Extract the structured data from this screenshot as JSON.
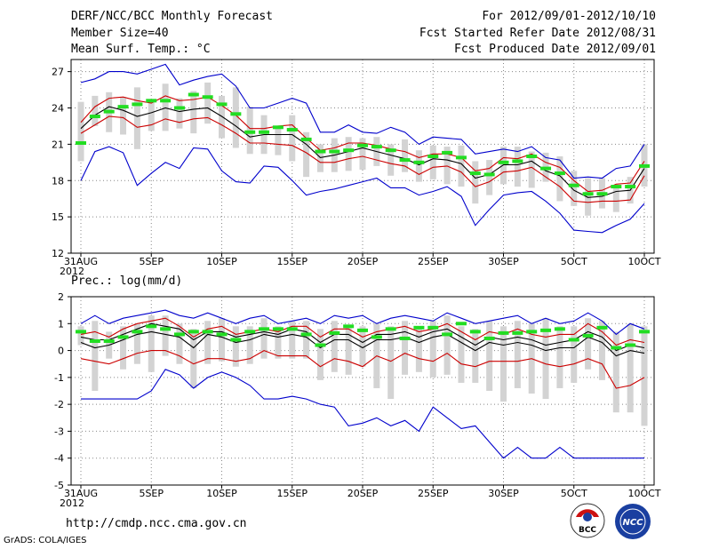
{
  "header": {
    "title": "DERF/NCC/BCC Monthly Forecast",
    "member_size": "Member Size=40",
    "variable": "Mean Surf. Temp.: °C",
    "period": "For 2012/09/01-2012/10/10",
    "fcst_started": "Fcst Started Refer Date 2012/08/31",
    "fcst_produced": "Fcst Produced Date 2012/09/01"
  },
  "footer": {
    "url": "http://cmdp.ncc.cma.gov.cn",
    "grads": "GrADS: COLA/IGES",
    "logo_left_text": "BCC",
    "logo_right_text": "NCC"
  },
  "colors": {
    "upper_lower_bound": "#0000cc",
    "spread": "#cc0000",
    "ensemble_mean": "#000000",
    "box": "#d3d3d3",
    "observed": "#22dd22",
    "grid": "#888888"
  },
  "chart_data": [
    {
      "type": "line",
      "title": "Mean Surf. Temp.: °C",
      "x_tick_labels": [
        "31AUG",
        "5SEP",
        "10SEP",
        "15SEP",
        "20SEP",
        "25SEP",
        "30SEP",
        "5OCT",
        "10OCT"
      ],
      "x_tick_year": "2012",
      "x_range": [
        0,
        40
      ],
      "ylim": [
        12,
        28
      ],
      "y_ticks": [
        12,
        15,
        18,
        21,
        24,
        27
      ],
      "grid": true,
      "series": [
        {
          "name": "max",
          "values": [
            26.1,
            26.4,
            27.0,
            27.0,
            26.8,
            27.2,
            27.6,
            25.9,
            26.3,
            26.6,
            26.8,
            25.8,
            24.0,
            24.0,
            24.4,
            24.8,
            24.4,
            22.0,
            22.0,
            22.6,
            22.0,
            21.9,
            22.4,
            22.0,
            21.0,
            21.6,
            21.5,
            21.4,
            20.2,
            20.4,
            20.6,
            20.4,
            20.8,
            19.9,
            19.7,
            18.2,
            18.3,
            18.2,
            19.0,
            19.2,
            21.0
          ]
        },
        {
          "name": "upper",
          "values": [
            22.8,
            24.1,
            24.8,
            24.9,
            24.6,
            24.4,
            25.0,
            24.6,
            24.7,
            24.9,
            24.2,
            23.4,
            22.3,
            22.3,
            22.5,
            22.6,
            21.5,
            20.5,
            20.7,
            21.1,
            21.1,
            20.9,
            20.6,
            20.4,
            19.9,
            20.2,
            20.2,
            19.9,
            18.8,
            19.0,
            19.9,
            19.8,
            20.2,
            19.5,
            19.1,
            18.0,
            17.1,
            17.2,
            17.7,
            17.8,
            19.6
          ]
        },
        {
          "name": "mean",
          "values": [
            22.3,
            23.4,
            24.1,
            23.8,
            23.3,
            23.6,
            24.0,
            23.7,
            23.9,
            24.0,
            23.3,
            22.5,
            21.6,
            21.8,
            21.8,
            21.8,
            21.0,
            19.9,
            20.1,
            20.4,
            20.7,
            20.4,
            20.1,
            19.8,
            19.3,
            19.8,
            19.7,
            19.4,
            18.2,
            18.5,
            19.3,
            19.3,
            19.6,
            18.8,
            18.4,
            17.2,
            16.6,
            16.7,
            17.1,
            17.2,
            19.0
          ]
        },
        {
          "name": "lower",
          "values": [
            21.9,
            22.6,
            23.3,
            23.2,
            22.4,
            22.6,
            23.1,
            22.8,
            23.1,
            23.2,
            22.6,
            21.9,
            21.1,
            21.1,
            21.0,
            20.9,
            20.3,
            19.5,
            19.5,
            19.8,
            20.0,
            19.7,
            19.4,
            19.2,
            18.5,
            19.1,
            19.2,
            18.7,
            17.5,
            17.9,
            18.7,
            18.8,
            19.1,
            18.3,
            17.5,
            16.3,
            16.2,
            16.3,
            16.3,
            16.4,
            18.4
          ]
        },
        {
          "name": "min",
          "values": [
            18.0,
            20.4,
            20.8,
            20.3,
            17.6,
            18.6,
            19.5,
            19.0,
            20.7,
            20.6,
            18.8,
            17.9,
            17.8,
            19.2,
            19.1,
            18.0,
            16.8,
            17.1,
            17.3,
            17.6,
            17.9,
            18.2,
            17.4,
            17.4,
            16.8,
            17.1,
            17.5,
            16.7,
            14.3,
            15.6,
            16.8,
            17.0,
            17.1,
            16.3,
            15.3,
            13.9,
            13.8,
            13.7,
            14.3,
            14.8,
            16.1
          ]
        },
        {
          "name": "box_high",
          "values": [
            24.5,
            25.0,
            25.3,
            24.9,
            25.7,
            24.7,
            26.0,
            24.8,
            25.4,
            26.1,
            25.0,
            25.7,
            24.1,
            23.4,
            22.4,
            23.4,
            22.0,
            21.0,
            21.5,
            21.6,
            21.5,
            21.6,
            21.0,
            21.4,
            20.5,
            20.9,
            20.8,
            20.9,
            19.6,
            19.7,
            20.8,
            20.8,
            20.4,
            20.3,
            20.0,
            18.8,
            18.2,
            18.2,
            17.6,
            18.3,
            21.0
          ]
        },
        {
          "name": "box_low",
          "values": [
            19.6,
            22.5,
            22.0,
            21.8,
            20.6,
            22.1,
            22.1,
            22.3,
            21.9,
            22.7,
            21.5,
            20.7,
            20.2,
            20.2,
            20.1,
            19.6,
            18.3,
            18.7,
            18.7,
            18.8,
            18.9,
            19.2,
            18.4,
            18.7,
            17.9,
            18.1,
            17.7,
            17.5,
            16.1,
            16.8,
            17.7,
            17.5,
            17.4,
            17.9,
            16.3,
            15.9,
            15.1,
            15.7,
            15.4,
            16.1,
            17.5
          ]
        },
        {
          "name": "observed",
          "values": [
            21.1,
            23.3,
            23.7,
            24.1,
            24.3,
            24.6,
            24.6,
            24.0,
            25.1,
            24.9,
            24.3,
            23.5,
            22.0,
            22.0,
            22.4,
            22.2,
            21.4,
            20.4,
            20.4,
            20.5,
            20.9,
            20.8,
            20.5,
            19.7,
            19.5,
            20.0,
            20.3,
            19.9,
            18.6,
            18.5,
            19.5,
            19.6,
            20.0,
            19.0,
            18.6,
            17.6,
            16.9,
            16.9,
            17.5,
            17.5,
            19.2
          ]
        }
      ]
    },
    {
      "type": "line",
      "title": "Prec.: log(mm/d)",
      "x_tick_labels": [
        "31AUG",
        "5SEP",
        "10SEP",
        "15SEP",
        "20SEP",
        "25SEP",
        "30SEP",
        "5OCT",
        "10OCT"
      ],
      "x_tick_year": "2012",
      "x_range": [
        0,
        40
      ],
      "ylim": [
        -5,
        2
      ],
      "y_ticks": [
        -5,
        -4,
        -3,
        -2,
        -1,
        0,
        1,
        2
      ],
      "grid": true,
      "series": [
        {
          "name": "max",
          "values": [
            1.0,
            1.3,
            1.0,
            1.2,
            1.3,
            1.4,
            1.5,
            1.3,
            1.2,
            1.4,
            1.2,
            1.0,
            1.2,
            1.3,
            1.0,
            1.1,
            1.2,
            1.0,
            1.3,
            1.2,
            1.3,
            1.0,
            1.2,
            1.3,
            1.2,
            1.1,
            1.4,
            1.2,
            1.0,
            1.1,
            1.2,
            1.3,
            1.0,
            1.2,
            1.0,
            1.1,
            1.4,
            1.1,
            0.6,
            1.0,
            0.8
          ]
        },
        {
          "name": "upper",
          "values": [
            0.6,
            0.7,
            0.5,
            0.8,
            1.0,
            1.1,
            1.2,
            0.9,
            0.5,
            0.8,
            0.9,
            0.6,
            0.7,
            0.8,
            0.7,
            0.9,
            0.9,
            0.5,
            0.8,
            0.8,
            0.5,
            0.7,
            0.8,
            0.9,
            0.7,
            0.8,
            1.0,
            0.7,
            0.4,
            0.7,
            0.6,
            0.8,
            0.6,
            0.5,
            0.6,
            0.6,
            1.0,
            0.7,
            0.2,
            0.4,
            0.3
          ]
        },
        {
          "name": "mean",
          "values": [
            0.5,
            0.4,
            0.4,
            0.6,
            0.8,
            1.0,
            0.9,
            0.8,
            0.4,
            0.7,
            0.7,
            0.5,
            0.6,
            0.7,
            0.6,
            0.8,
            0.7,
            0.3,
            0.6,
            0.6,
            0.3,
            0.6,
            0.6,
            0.7,
            0.5,
            0.7,
            0.8,
            0.5,
            0.2,
            0.5,
            0.4,
            0.5,
            0.4,
            0.2,
            0.3,
            0.4,
            0.7,
            0.5,
            0.0,
            0.2,
            0.1
          ]
        },
        {
          "name": "lower",
          "values": [
            0.3,
            0.1,
            0.2,
            0.4,
            0.6,
            0.7,
            0.6,
            0.5,
            0.1,
            0.6,
            0.5,
            0.3,
            0.4,
            0.6,
            0.5,
            0.6,
            0.5,
            0.1,
            0.4,
            0.4,
            0.1,
            0.4,
            0.4,
            0.5,
            0.3,
            0.5,
            0.6,
            0.3,
            0.0,
            0.3,
            0.2,
            0.3,
            0.2,
            0.0,
            0.1,
            0.1,
            0.5,
            0.3,
            -0.2,
            0.0,
            -0.1
          ]
        },
        {
          "name": "min",
          "values": [
            -0.3,
            -0.4,
            -0.5,
            -0.3,
            -0.1,
            0.0,
            0.0,
            -0.2,
            -0.5,
            -0.3,
            -0.3,
            -0.4,
            -0.3,
            0.0,
            -0.2,
            -0.2,
            -0.2,
            -0.6,
            -0.3,
            -0.4,
            -0.6,
            -0.2,
            -0.4,
            -0.1,
            -0.3,
            -0.4,
            -0.1,
            -0.5,
            -0.6,
            -0.4,
            -0.4,
            -0.4,
            -0.3,
            -0.5,
            -0.6,
            -0.5,
            -0.3,
            -0.5,
            -1.4,
            -1.3,
            -1.0
          ]
        },
        {
          "name": "min_extreme",
          "values": [
            -1.8,
            -1.8,
            -1.8,
            -1.8,
            -1.8,
            -1.5,
            -0.7,
            -0.9,
            -1.4,
            -1.0,
            -0.8,
            -1.0,
            -1.3,
            -1.8,
            -1.8,
            -1.7,
            -1.8,
            -2.0,
            -2.1,
            -2.8,
            -2.7,
            -2.5,
            -2.8,
            -2.6,
            -3.0,
            -2.1,
            -2.5,
            -2.9,
            -2.8,
            -3.4,
            -4.0,
            -3.6,
            -4.0,
            -4.0,
            -3.6,
            -4.0,
            -4.0,
            -4.0,
            -4.0,
            -4.0,
            -4.0
          ]
        },
        {
          "name": "box_high",
          "values": [
            0.9,
            1.1,
            0.7,
            0.9,
            1.0,
            1.3,
            1.3,
            1.0,
            0.8,
            1.1,
            1.2,
            0.9,
            0.9,
            1.2,
            0.9,
            1.1,
            1.1,
            0.8,
            1.1,
            0.9,
            0.9,
            1.0,
            0.9,
            1.1,
            0.9,
            1.1,
            1.3,
            0.9,
            0.8,
            1.1,
            0.9,
            1.1,
            1.0,
            1.2,
            0.9,
            0.9,
            1.2,
            1.1,
            0.7,
            1.0,
            0.9
          ]
        },
        {
          "name": "box_low",
          "values": [
            0.2,
            -1.5,
            -0.3,
            -0.7,
            -0.5,
            -0.8,
            -0.2,
            -0.5,
            -1.4,
            -0.5,
            -0.4,
            -0.6,
            -0.5,
            -0.3,
            -0.3,
            -0.3,
            -0.3,
            -1.1,
            -0.8,
            -0.9,
            -0.6,
            -1.4,
            -1.8,
            -0.9,
            -0.8,
            -1.0,
            -0.9,
            -1.2,
            -1.2,
            -1.5,
            -1.9,
            -1.4,
            -1.6,
            -1.8,
            -1.4,
            -1.2,
            -0.7,
            -1.1,
            -2.3,
            -2.3,
            -2.8
          ]
        },
        {
          "name": "observed",
          "values": [
            0.7,
            0.35,
            0.35,
            0.5,
            0.7,
            0.9,
            0.8,
            0.6,
            0.7,
            0.7,
            0.6,
            0.4,
            0.7,
            0.8,
            0.8,
            0.8,
            0.6,
            0.2,
            0.65,
            0.9,
            0.75,
            0.5,
            0.8,
            0.45,
            0.85,
            0.85,
            0.6,
            1.0,
            0.7,
            0.45,
            0.65,
            0.65,
            0.7,
            0.75,
            0.8,
            0.4,
            0.55,
            0.85,
            0.1,
            0.2,
            0.7
          ]
        }
      ]
    }
  ]
}
